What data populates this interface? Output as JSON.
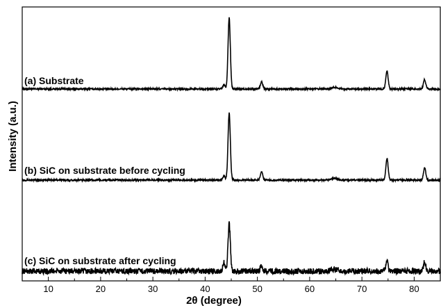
{
  "chart_data": {
    "type": "line",
    "xlabel": "2θ (degree)",
    "ylabel": "Intensity (a.u.)",
    "xlim": [
      5,
      85
    ],
    "xticks": [
      10,
      20,
      30,
      40,
      50,
      60,
      70,
      80
    ],
    "grid": false,
    "colors": {
      "line": "#000000",
      "axis": "#000000",
      "background": "#ffffff"
    },
    "series": [
      {
        "name": "(a) Substrate",
        "baseline": 0.0,
        "noise": 0.04,
        "x": [
          43.6,
          44.6,
          50.8,
          64.8,
          74.8,
          82.0
        ],
        "values": [
          0.2,
          3.4,
          0.35,
          0.08,
          0.85,
          0.45
        ]
      },
      {
        "name": "(b) SiC on substrate before cycling",
        "baseline": 0.0,
        "noise": 0.04,
        "x": [
          43.6,
          44.6,
          50.8,
          64.8,
          74.8,
          82.0
        ],
        "values": [
          0.2,
          3.2,
          0.4,
          0.08,
          1.05,
          0.6
        ]
      },
      {
        "name": "(c) SiC on substrate after cycling",
        "baseline": 0.0,
        "noise": 0.14,
        "x": [
          43.6,
          44.6,
          50.8,
          64.8,
          74.8,
          82.0
        ],
        "values": [
          0.4,
          2.25,
          0.25,
          0.1,
          0.45,
          0.45
        ]
      }
    ]
  }
}
